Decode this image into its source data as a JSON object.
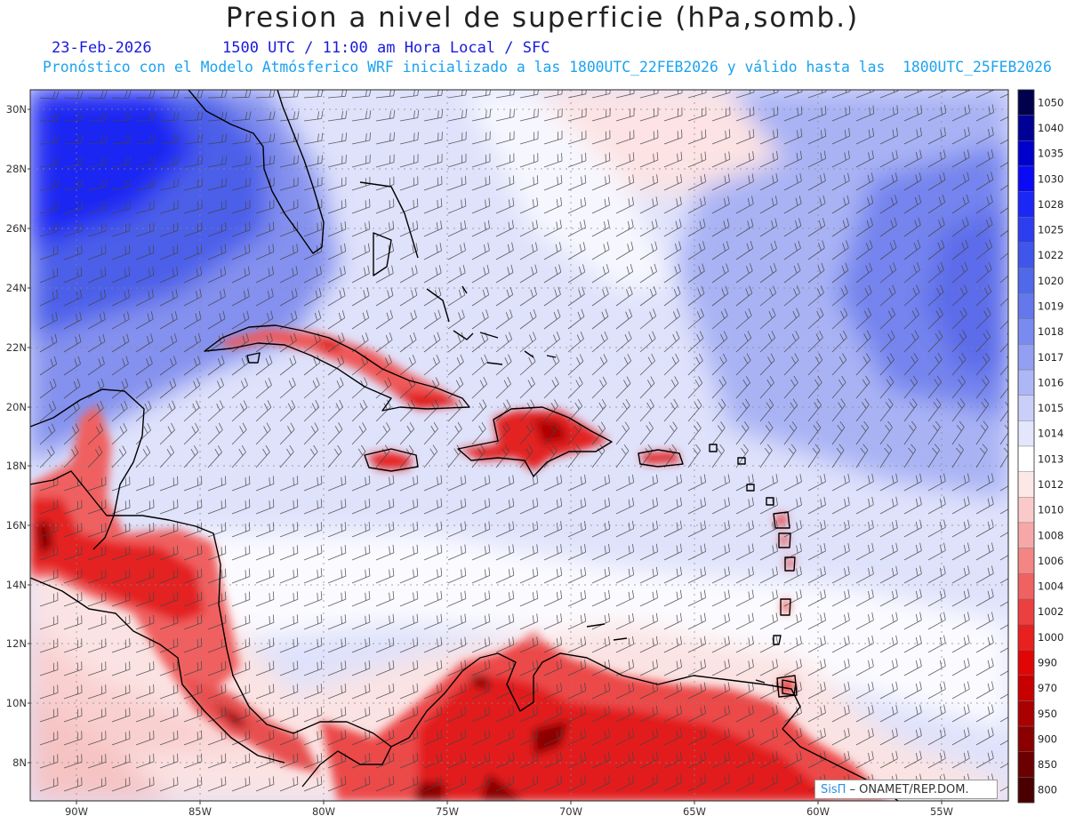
{
  "header": {
    "title": "Presion a nivel de superficie (hPa,somb.)",
    "date": "23-Feb-2026",
    "valid_time": "1500 UTC / 11:00 am Hora Local / SFC",
    "forecast_note": "Pronóstico con el Modelo Atmósferico WRF inicializado a las 1800UTC_22FEB2026 y válido hasta las  1800UTC_25FEB2026"
  },
  "map": {
    "lon_range": [
      -92,
      -52
    ],
    "lat_range": [
      7,
      31
    ],
    "lon_ticks": [
      "90W",
      "85W",
      "80W",
      "75W",
      "70W",
      "65W",
      "60W",
      "55W"
    ],
    "lat_ticks": [
      "30N",
      "28N",
      "26N",
      "24N",
      "22N",
      "20N",
      "18N",
      "16N",
      "14N",
      "12N",
      "10N",
      "8N"
    ],
    "gridlines": "dotted"
  },
  "legend": {
    "levels": [
      "1050",
      "1040",
      "1035",
      "1030",
      "1028",
      "1025",
      "1022",
      "1020",
      "1019",
      "1018",
      "1017",
      "1016",
      "1015",
      "1014",
      "1013",
      "1012",
      "1010",
      "1008",
      "1006",
      "1004",
      "1002",
      "1000",
      "990",
      "970",
      "950",
      "900",
      "850",
      "800"
    ],
    "colors": [
      "#00004d",
      "#000095",
      "#0000cc",
      "#0a0af5",
      "#1b27f5",
      "#2d3ef0",
      "#3f55eb",
      "#5068ea",
      "#6478ec",
      "#7a8bef",
      "#929ff2",
      "#adb7f5",
      "#c9cff8",
      "#e4e7fc",
      "#ffffff",
      "#fde8e8",
      "#facaca",
      "#f6a8a8",
      "#f38585",
      "#f06262",
      "#ec4040",
      "#e82020",
      "#e00606",
      "#c80000",
      "#aa0000",
      "#8a0000",
      "#6a0000",
      "#4a0000"
    ]
  },
  "credit": {
    "brand": "SisΠ",
    "text": " – ONAMET/REP.DOM."
  }
}
